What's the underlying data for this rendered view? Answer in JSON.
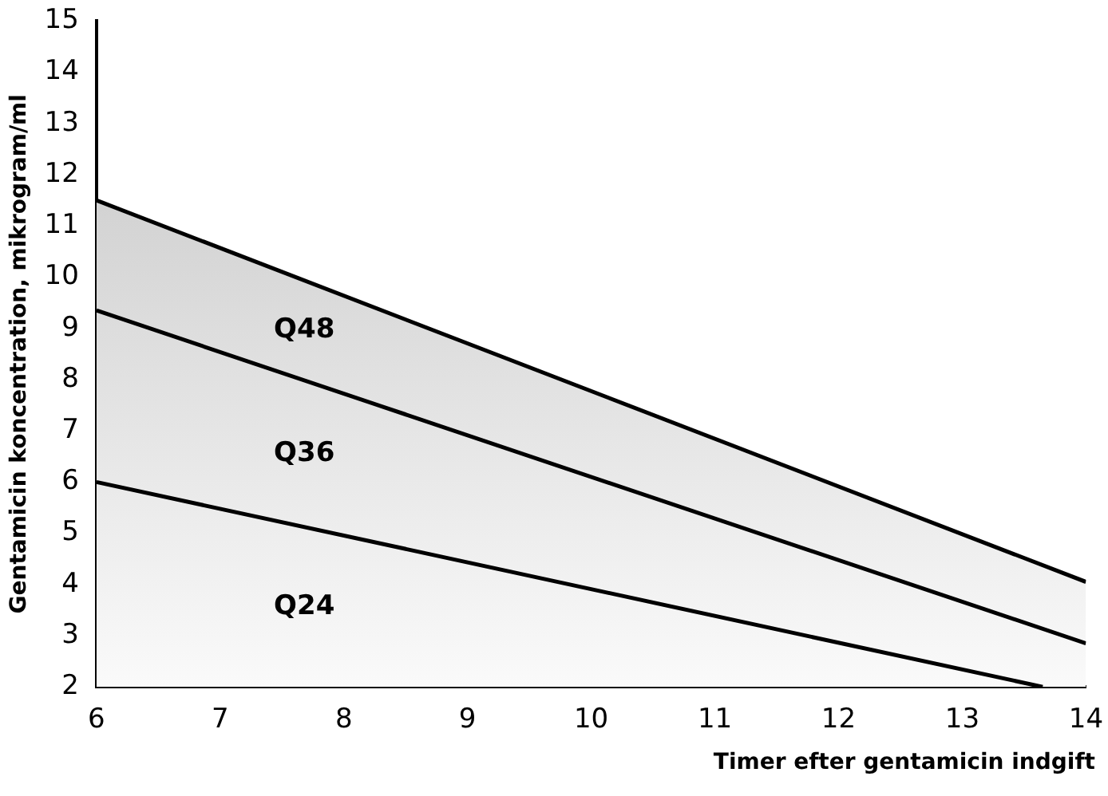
{
  "chart_data": {
    "type": "line",
    "xlabel": "Timer efter gentamicin indgift",
    "ylabel": "Gentamicin koncentration, mikrogram/ml",
    "series": [
      {
        "type": "area",
        "color": "#000000",
        "x": [
          6,
          14
        ],
        "values": [
          11.5,
          4.05
        ]
      },
      {
        "color": "#000000",
        "x": [
          6,
          14
        ],
        "values": [
          9.35,
          2.85
        ]
      },
      {
        "color": "#000000",
        "x": [
          6,
          13.65
        ],
        "values": [
          6.0,
          2.0
        ]
      }
    ],
    "xlim": [
      6,
      14
    ],
    "xticks": [
      6,
      7,
      8,
      9,
      10,
      11,
      12,
      13,
      14
    ],
    "ylim": [
      2,
      15
    ],
    "yticks": [
      2,
      3,
      4,
      5,
      6,
      7,
      8,
      9,
      10,
      11,
      12,
      13,
      14,
      15
    ],
    "grid": false,
    "legend": false,
    "marker": "none",
    "line_style": "solid",
    "annotations": [
      "Q48",
      "Q36",
      "Q24"
    ]
  }
}
